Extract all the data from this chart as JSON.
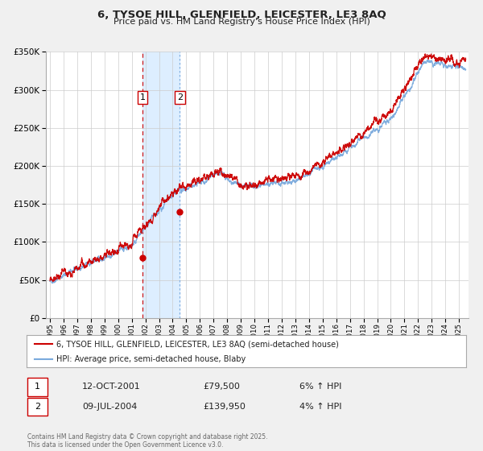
{
  "title": "6, TYSOE HILL, GLENFIELD, LEICESTER, LE3 8AQ",
  "subtitle": "Price paid vs. HM Land Registry's House Price Index (HPI)",
  "legend_line1": "6, TYSOE HILL, GLENFIELD, LEICESTER, LE3 8AQ (semi-detached house)",
  "legend_line2": "HPI: Average price, semi-detached house, Blaby",
  "annotation1_date": "12-OCT-2001",
  "annotation1_price": "£79,500",
  "annotation1_hpi": "6% ↑ HPI",
  "annotation2_date": "09-JUL-2004",
  "annotation2_price": "£139,950",
  "annotation2_hpi": "4% ↑ HPI",
  "footer": "Contains HM Land Registry data © Crown copyright and database right 2025.\nThis data is licensed under the Open Government Licence v3.0.",
  "price_color": "#cc0000",
  "hpi_color": "#7aaadd",
  "shaded_color": "#ddeeff",
  "background_color": "#f0f0f0",
  "plot_bg_color": "#ffffff",
  "ylim": [
    0,
    350000
  ],
  "yticks": [
    0,
    50000,
    100000,
    150000,
    200000,
    250000,
    300000,
    350000
  ],
  "xlim_start": 1994.7,
  "xlim_end": 2025.7,
  "sale1_x": 2001.79,
  "sale1_y": 79500,
  "sale2_x": 2004.52,
  "sale2_y": 139950,
  "shade_x1": 2001.79,
  "shade_x2": 2004.52,
  "n_points": 3650,
  "hpi_seed": 42,
  "price_seed": 99
}
